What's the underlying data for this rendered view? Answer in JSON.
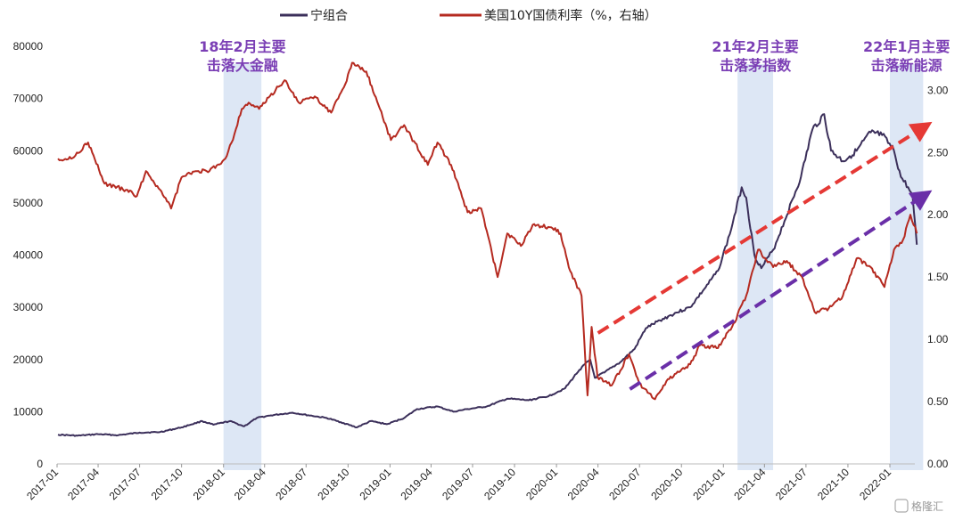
{
  "chart_data": {
    "type": "line",
    "title": "",
    "xlabel": "",
    "ylabel": "",
    "y2label": "",
    "x_ticks": [
      "2017-01",
      "2017-04",
      "2017-07",
      "2017-10",
      "2018-01",
      "2018-04",
      "2018-07",
      "2018-10",
      "2019-01",
      "2019-04",
      "2019-07",
      "2019-10",
      "2020-01",
      "2020-04",
      "2020-07",
      "2020-10",
      "2021-01",
      "2021-04",
      "2021-07",
      "2021-10",
      "2022-01"
    ],
    "ylim": [
      0,
      80000
    ],
    "y_ticks": [
      "0",
      "10000",
      "20000",
      "30000",
      "40000",
      "50000",
      "60000",
      "70000",
      "80000"
    ],
    "y2lim": [
      0,
      3.5
    ],
    "y2_ticks": [
      "0.00",
      "0.50",
      "1.00",
      "1.50",
      "2.00",
      "2.50",
      "3.00"
    ],
    "legend_position": "top",
    "series": [
      {
        "name": "宁组合",
        "axis": "left",
        "color": "#3b2f5a",
        "points": [
          [
            "2017-01-03",
            5600
          ],
          [
            "2017-02-15",
            5400
          ],
          [
            "2017-04-01",
            5700
          ],
          [
            "2017-05-15",
            5500
          ],
          [
            "2017-07-01",
            6000
          ],
          [
            "2017-08-15",
            6100
          ],
          [
            "2017-10-01",
            7000
          ],
          [
            "2017-11-15",
            8200
          ],
          [
            "2017-12-10",
            7500
          ],
          [
            "2018-01-15",
            8200
          ],
          [
            "2018-02-15",
            7200
          ],
          [
            "2018-03-15",
            8800
          ],
          [
            "2018-04-15",
            9300
          ],
          [
            "2018-06-01",
            9800
          ],
          [
            "2018-07-15",
            9200
          ],
          [
            "2018-08-15",
            8800
          ],
          [
            "2018-09-15",
            8000
          ],
          [
            "2018-10-20",
            7000
          ],
          [
            "2018-11-20",
            8200
          ],
          [
            "2018-12-25",
            7600
          ],
          [
            "2019-02-01",
            8800
          ],
          [
            "2019-03-01",
            10500
          ],
          [
            "2019-04-15",
            11000
          ],
          [
            "2019-05-20",
            10000
          ],
          [
            "2019-06-20",
            10500
          ],
          [
            "2019-08-01",
            11000
          ],
          [
            "2019-09-15",
            12500
          ],
          [
            "2019-11-01",
            12200
          ],
          [
            "2019-12-15",
            13000
          ],
          [
            "2020-01-20",
            14500
          ],
          [
            "2020-02-20",
            18000
          ],
          [
            "2020-03-15",
            20000
          ],
          [
            "2020-03-25",
            16500
          ],
          [
            "2020-04-15",
            17500
          ],
          [
            "2020-05-20",
            19500
          ],
          [
            "2020-06-20",
            22000
          ],
          [
            "2020-07-15",
            26000
          ],
          [
            "2020-08-15",
            27500
          ],
          [
            "2020-09-20",
            29000
          ],
          [
            "2020-10-20",
            30000
          ],
          [
            "2020-11-20",
            33500
          ],
          [
            "2020-12-20",
            37000
          ],
          [
            "2021-01-15",
            44000
          ],
          [
            "2021-02-10",
            53000
          ],
          [
            "2021-02-20",
            51000
          ],
          [
            "2021-03-10",
            40000
          ],
          [
            "2021-03-25",
            37500
          ],
          [
            "2021-04-20",
            41000
          ],
          [
            "2021-05-15",
            46500
          ],
          [
            "2021-06-20",
            55000
          ],
          [
            "2021-07-15",
            64000
          ],
          [
            "2021-08-10",
            67000
          ],
          [
            "2021-08-25",
            60000
          ],
          [
            "2021-09-20",
            58000
          ],
          [
            "2021-10-20",
            60000
          ],
          [
            "2021-11-20",
            63500
          ],
          [
            "2021-12-15",
            63000
          ],
          [
            "2022-01-10",
            60000
          ],
          [
            "2022-01-25",
            55000
          ],
          [
            "2022-02-10",
            53000
          ],
          [
            "2022-02-20",
            51000
          ],
          [
            "2022-03-01",
            42000
          ]
        ]
      },
      {
        "name": "美国10Y国债利率（%，右轴）",
        "axis": "right",
        "color": "#b52a20",
        "points": [
          [
            "2017-01-03",
            2.45
          ],
          [
            "2017-02-01",
            2.45
          ],
          [
            "2017-03-10",
            2.58
          ],
          [
            "2017-04-15",
            2.25
          ],
          [
            "2017-06-01",
            2.2
          ],
          [
            "2017-06-25",
            2.15
          ],
          [
            "2017-07-15",
            2.35
          ],
          [
            "2017-08-15",
            2.2
          ],
          [
            "2017-09-08",
            2.05
          ],
          [
            "2017-10-01",
            2.3
          ],
          [
            "2017-11-01",
            2.35
          ],
          [
            "2017-12-01",
            2.35
          ],
          [
            "2018-01-05",
            2.45
          ],
          [
            "2018-01-25",
            2.65
          ],
          [
            "2018-02-10",
            2.85
          ],
          [
            "2018-02-25",
            2.9
          ],
          [
            "2018-03-20",
            2.85
          ],
          [
            "2018-04-25",
            3.0
          ],
          [
            "2018-05-15",
            3.08
          ],
          [
            "2018-06-15",
            2.9
          ],
          [
            "2018-07-20",
            2.95
          ],
          [
            "2018-08-25",
            2.82
          ],
          [
            "2018-09-25",
            3.05
          ],
          [
            "2018-10-10",
            3.22
          ],
          [
            "2018-11-10",
            3.15
          ],
          [
            "2018-12-10",
            2.85
          ],
          [
            "2019-01-03",
            2.6
          ],
          [
            "2019-02-01",
            2.72
          ],
          [
            "2019-03-25",
            2.4
          ],
          [
            "2019-04-15",
            2.58
          ],
          [
            "2019-05-15",
            2.4
          ],
          [
            "2019-06-20",
            2.02
          ],
          [
            "2019-07-20",
            2.05
          ],
          [
            "2019-08-25",
            1.5
          ],
          [
            "2019-09-15",
            1.85
          ],
          [
            "2019-10-15",
            1.75
          ],
          [
            "2019-11-10",
            1.92
          ],
          [
            "2019-12-20",
            1.9
          ],
          [
            "2020-01-10",
            1.85
          ],
          [
            "2020-01-31",
            1.55
          ],
          [
            "2020-02-25",
            1.35
          ],
          [
            "2020-03-09",
            0.55
          ],
          [
            "2020-03-18",
            1.1
          ],
          [
            "2020-03-31",
            0.7
          ],
          [
            "2020-05-01",
            0.63
          ],
          [
            "2020-06-08",
            0.88
          ],
          [
            "2020-06-30",
            0.65
          ],
          [
            "2020-08-04",
            0.52
          ],
          [
            "2020-09-01",
            0.68
          ],
          [
            "2020-10-20",
            0.8
          ],
          [
            "2020-11-10",
            0.95
          ],
          [
            "2020-12-20",
            0.93
          ],
          [
            "2021-01-20",
            1.1
          ],
          [
            "2021-02-20",
            1.35
          ],
          [
            "2021-03-18",
            1.72
          ],
          [
            "2021-04-20",
            1.58
          ],
          [
            "2021-05-20",
            1.63
          ],
          [
            "2021-06-25",
            1.48
          ],
          [
            "2021-07-20",
            1.22
          ],
          [
            "2021-08-20",
            1.25
          ],
          [
            "2021-09-20",
            1.35
          ],
          [
            "2021-10-20",
            1.65
          ],
          [
            "2021-11-20",
            1.58
          ],
          [
            "2021-12-20",
            1.42
          ],
          [
            "2022-01-10",
            1.72
          ],
          [
            "2022-01-30",
            1.8
          ],
          [
            "2022-02-15",
            2.0
          ],
          [
            "2022-03-01",
            1.85
          ]
        ]
      }
    ],
    "highlight_periods": [
      {
        "start": "2018-01-01",
        "end": "2018-03-25",
        "label": [
          "18年2月主要",
          "击落大金融"
        ]
      },
      {
        "start": "2021-02-01",
        "end": "2021-04-20",
        "label": [
          "21年2月主要",
          "击落茅指数"
        ]
      },
      {
        "start": "2022-01-01",
        "end": "2022-03-15",
        "label": [
          "22年1月主要",
          "击落新能源"
        ]
      }
    ],
    "trend_arrows": [
      {
        "color": "#e53935",
        "start": [
          "2020-04-01",
          1.05
        ],
        "end": [
          "2022-03-15",
          2.7
        ]
      },
      {
        "color": "#6a2fa8",
        "start": [
          "2020-06-10",
          0.6
        ],
        "end": [
          "2022-03-15",
          2.15
        ]
      }
    ],
    "annotation_color": "#7b3fb5",
    "highlight_color": "#dde7f5",
    "watermark": "格隆汇"
  }
}
